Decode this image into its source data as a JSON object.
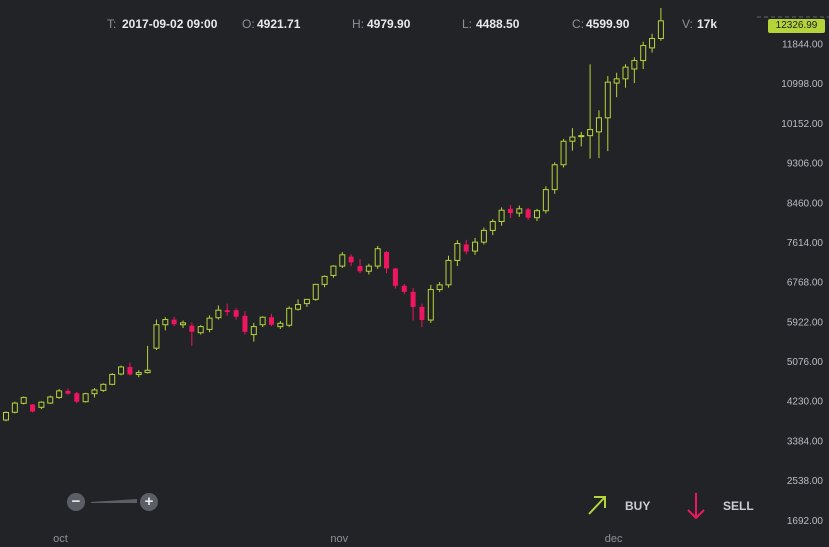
{
  "ohlc_bar": {
    "t_label": "T:",
    "t_value": "2017-09-02 09:00",
    "o_label": "O:",
    "o_value": "4921.71",
    "h_label": "H:",
    "h_value": "4979.90",
    "l_label": "L:",
    "l_value": "4488.50",
    "c_label": "C:",
    "c_value": "4599.90",
    "v_label": "V:",
    "v_value": "17k"
  },
  "last_price_badge": "12326.99",
  "controls": {
    "zoom_out_symbol": "−",
    "zoom_in_symbol": "+",
    "buy_label": "BUY",
    "sell_label": "SELL",
    "buy_icon": "arrow-up-right-icon",
    "sell_icon": "arrow-down-icon"
  },
  "colors": {
    "background": "#222327",
    "up": "#b5d43a",
    "down": "#f0155f",
    "badge": "#b5d43a"
  },
  "chart_data": {
    "type": "candlestick",
    "y_ticks": [
      11844,
      10998,
      10152,
      9306,
      8460,
      7614,
      6768,
      5922,
      5076,
      4230,
      3384,
      2538,
      1692
    ],
    "y_tick_labels": [
      "11844.00",
      "10998.00",
      "10152.00",
      "9306.00",
      "8460.00",
      "7614.00",
      "6768.00",
      "5922.00",
      "5076.00",
      "4230.00",
      "3384.00",
      "2538.00",
      "1692.00"
    ],
    "x_labels": [
      {
        "label": "oct",
        "index": 6.5
      },
      {
        "label": "nov",
        "index": 38
      },
      {
        "label": "dec",
        "index": 69
      }
    ],
    "ylim": [
      1390,
      12600
    ],
    "candles": [
      [
        3820,
        4000,
        3790,
        3980
      ],
      [
        3985,
        4210,
        3960,
        4180
      ],
      [
        4175,
        4320,
        4150,
        4300
      ],
      [
        4150,
        4160,
        3980,
        4000
      ],
      [
        4090,
        4220,
        4050,
        4200
      ],
      [
        4180,
        4340,
        4160,
        4310
      ],
      [
        4300,
        4480,
        4270,
        4440
      ],
      [
        4440,
        4490,
        4360,
        4380
      ],
      [
        4390,
        4420,
        4180,
        4210
      ],
      [
        4210,
        4400,
        4190,
        4380
      ],
      [
        4380,
        4500,
        4300,
        4460
      ],
      [
        4450,
        4600,
        4420,
        4580
      ],
      [
        4580,
        4820,
        4560,
        4790
      ],
      [
        4800,
        4980,
        4770,
        4950
      ],
      [
        4950,
        5040,
        4770,
        4790
      ],
      [
        4790,
        4880,
        4730,
        4830
      ],
      [
        4830,
        5400,
        4810,
        4880
      ],
      [
        5350,
        5960,
        5310,
        5850
      ],
      [
        5850,
        6010,
        5730,
        5960
      ],
      [
        5960,
        6020,
        5820,
        5860
      ],
      [
        5850,
        5940,
        5780,
        5890
      ],
      [
        5830,
        5900,
        5400,
        5700
      ],
      [
        5680,
        5840,
        5640,
        5810
      ],
      [
        5750,
        6050,
        5690,
        5990
      ],
      [
        6000,
        6260,
        5960,
        6160
      ],
      [
        6160,
        6300,
        6040,
        6120
      ],
      [
        6160,
        6200,
        5960,
        6020
      ],
      [
        6040,
        6140,
        5640,
        5700
      ],
      [
        5640,
        5890,
        5490,
        5810
      ],
      [
        5850,
        6030,
        5800,
        6010
      ],
      [
        6010,
        6080,
        5820,
        5850
      ],
      [
        5810,
        5930,
        5760,
        5880
      ],
      [
        5840,
        6240,
        5800,
        6200
      ],
      [
        6180,
        6390,
        6150,
        6280
      ],
      [
        6300,
        6400,
        6230,
        6390
      ],
      [
        6390,
        6720,
        6360,
        6710
      ],
      [
        6710,
        6900,
        6650,
        6880
      ],
      [
        6900,
        7120,
        6850,
        7100
      ],
      [
        7100,
        7400,
        7060,
        7340
      ],
      [
        7300,
        7350,
        7100,
        7180
      ],
      [
        7100,
        7250,
        6950,
        6990
      ],
      [
        6990,
        7150,
        6920,
        7100
      ],
      [
        7100,
        7530,
        7040,
        7470
      ],
      [
        7400,
        7420,
        6950,
        7050
      ],
      [
        7050,
        7060,
        6620,
        6680
      ],
      [
        6680,
        6720,
        6500,
        6550
      ],
      [
        6550,
        6630,
        5940,
        6230
      ],
      [
        6230,
        6300,
        5800,
        5950
      ],
      [
        5950,
        6700,
        5890,
        6600
      ],
      [
        6600,
        6760,
        6550,
        6700
      ],
      [
        6700,
        7320,
        6640,
        7220
      ],
      [
        7220,
        7650,
        7100,
        7580
      ],
      [
        7560,
        7660,
        7350,
        7410
      ],
      [
        7420,
        7700,
        7340,
        7610
      ],
      [
        7610,
        7920,
        7560,
        7860
      ],
      [
        7860,
        8100,
        7760,
        8050
      ],
      [
        8050,
        8350,
        7960,
        8290
      ],
      [
        8320,
        8400,
        8120,
        8230
      ],
      [
        8230,
        8390,
        8150,
        8320
      ],
      [
        8310,
        8340,
        8080,
        8130
      ],
      [
        8130,
        8320,
        8060,
        8280
      ],
      [
        8280,
        8800,
        8220,
        8730
      ],
      [
        8730,
        9310,
        8640,
        9260
      ],
      [
        9260,
        9810,
        9200,
        9760
      ],
      [
        9760,
        10040,
        9560,
        9850
      ],
      [
        9860,
        9960,
        9650,
        9880
      ],
      [
        9880,
        11400,
        9390,
        10010
      ],
      [
        9960,
        10420,
        9400,
        10260
      ],
      [
        10260,
        11150,
        9550,
        11020
      ],
      [
        11000,
        11220,
        10700,
        11090
      ],
      [
        11090,
        11400,
        10900,
        11340
      ],
      [
        11300,
        11550,
        11000,
        11480
      ],
      [
        11480,
        11880,
        11300,
        11800
      ],
      [
        11750,
        12050,
        11650,
        11950
      ],
      [
        11950,
        12600,
        11900,
        12326.99
      ]
    ]
  }
}
